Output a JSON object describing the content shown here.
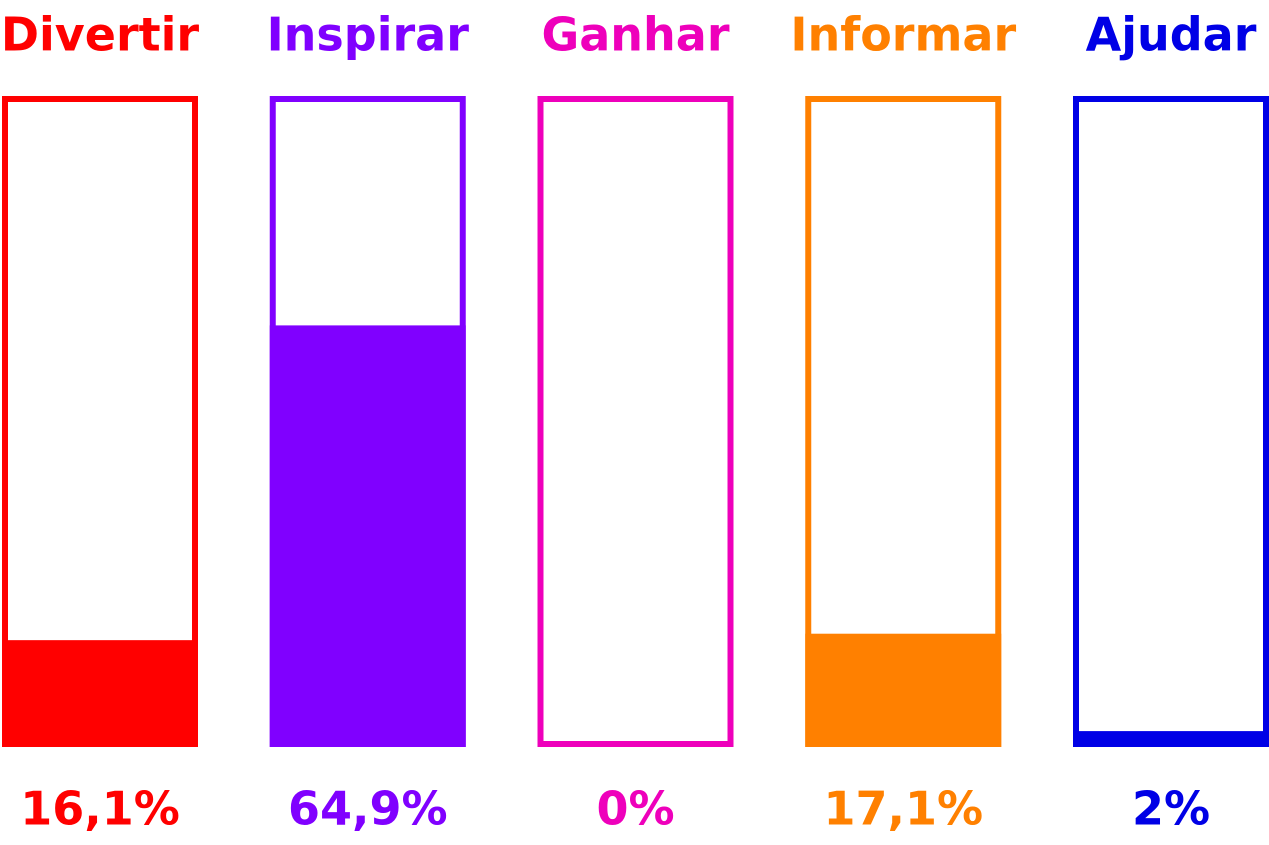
{
  "chart_data": {
    "type": "bar",
    "categories": [
      "Divertir",
      "Inspirar",
      "Ganhar",
      "Informar",
      "Ajudar"
    ],
    "values": [
      16.1,
      64.9,
      0,
      17.1,
      2
    ],
    "value_labels": [
      "16,1%",
      "64,9%",
      "0%",
      "17,1%",
      "2%"
    ],
    "colors": [
      "#ff0000",
      "#8000ff",
      "#ee00bb",
      "#ff8000",
      "#0000e6"
    ],
    "ylim": [
      0,
      100
    ]
  }
}
